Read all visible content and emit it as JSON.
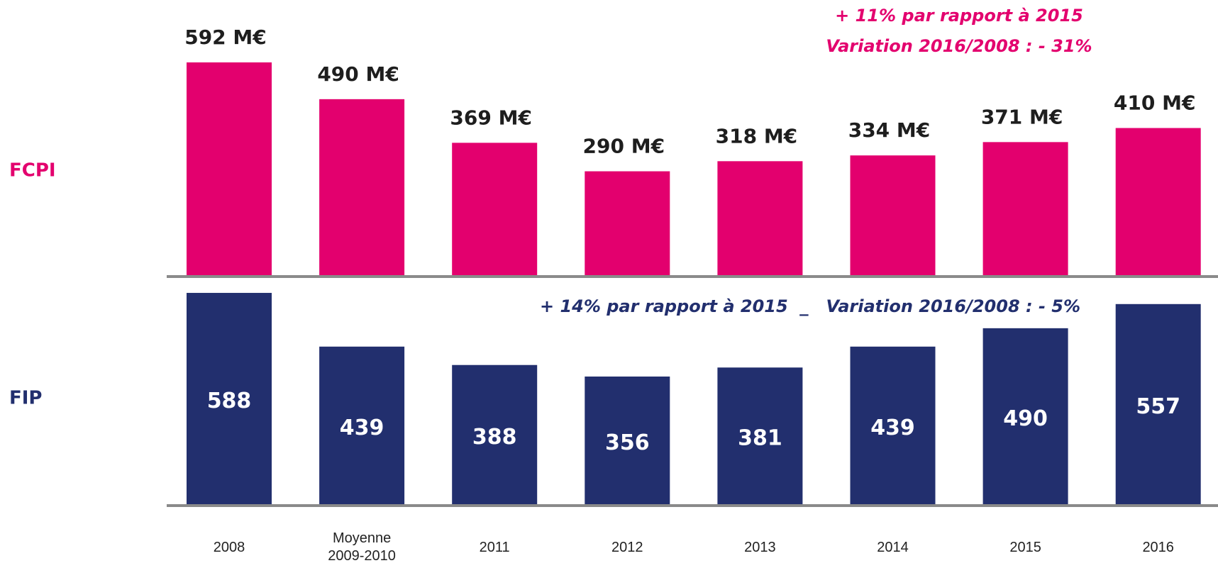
{
  "chart_data": [
    {
      "type": "bar",
      "title": "FCPI",
      "color": "#e3006e",
      "annotations": [
        "+ 11% par rapport à 2015",
        "Variation 2016/2008 : - 31%"
      ],
      "values": [
        592,
        490,
        369,
        290,
        318,
        334,
        371,
        410
      ],
      "value_labels": [
        "592 M€",
        "490 M€",
        "369 M€",
        "290 M€",
        "318 M€",
        "334 M€",
        "371 M€",
        "410 M€"
      ]
    },
    {
      "type": "bar",
      "title": "FIP",
      "color": "#222f6e",
      "annotations": [
        "+ 14% par rapport à 2015  _   Variation 2016/2008 : - 5%"
      ],
      "categories": [
        "2008",
        "Moyenne 2009-2010",
        "2011",
        "2012",
        "2013",
        "2014",
        "2015",
        "2016"
      ],
      "values": [
        588,
        439,
        388,
        356,
        381,
        439,
        490,
        557
      ]
    }
  ]
}
